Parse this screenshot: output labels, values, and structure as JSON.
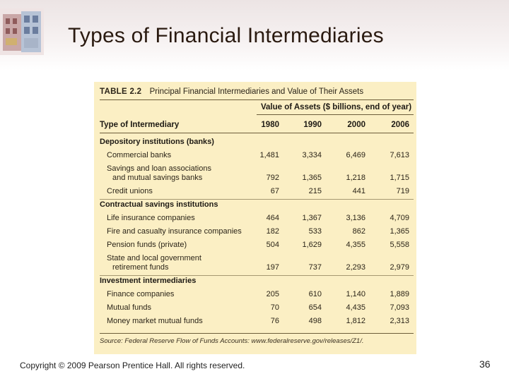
{
  "slide": {
    "title": "Types of Financial Intermediaries",
    "copyright": "Copyright © 2009 Pearson Prentice Hall. All rights reserved.",
    "page_number": "36"
  },
  "table": {
    "table_number": "TABLE 2.2",
    "caption": "Principal Financial Intermediaries and Value of Their Assets",
    "value_header": "Value of Assets ($ billions, end of year)",
    "type_header": "Type of Intermediary",
    "years": [
      "1980",
      "1990",
      "2000",
      "2006"
    ],
    "categories": [
      {
        "name": "Depository institutions (banks)",
        "rows": [
          {
            "label": [
              "Commercial banks"
            ],
            "values": [
              "1,481",
              "3,334",
              "6,469",
              "7,613"
            ]
          },
          {
            "label": [
              "Savings and loan associations",
              "and mutual savings banks"
            ],
            "values": [
              "792",
              "1,365",
              "1,218",
              "1,715"
            ]
          },
          {
            "label": [
              "Credit unions"
            ],
            "values": [
              "67",
              "215",
              "441",
              "719"
            ]
          }
        ]
      },
      {
        "name": "Contractual savings institutions",
        "rows": [
          {
            "label": [
              "Life insurance companies"
            ],
            "values": [
              "464",
              "1,367",
              "3,136",
              "4,709"
            ]
          },
          {
            "label": [
              "Fire and casualty insurance companies"
            ],
            "values": [
              "182",
              "533",
              "862",
              "1,365"
            ]
          },
          {
            "label": [
              "Pension funds (private)"
            ],
            "values": [
              "504",
              "1,629",
              "4,355",
              "5,558"
            ]
          },
          {
            "label": [
              "State and local government",
              "retirement funds"
            ],
            "values": [
              "197",
              "737",
              "2,293",
              "2,979"
            ]
          }
        ]
      },
      {
        "name": "Investment intermediaries",
        "rows": [
          {
            "label": [
              "Finance companies"
            ],
            "values": [
              "205",
              "610",
              "1,140",
              "1,889"
            ]
          },
          {
            "label": [
              "Mutual funds"
            ],
            "values": [
              "70",
              "654",
              "4,435",
              "7,093"
            ]
          },
          {
            "label": [
              "Money market mutual funds"
            ],
            "values": [
              "76",
              "498",
              "1,812",
              "2,313"
            ]
          }
        ]
      }
    ],
    "source": "Source: Federal Reserve Flow of Funds Accounts: www.federalreserve.gov/releases/Z1/."
  }
}
